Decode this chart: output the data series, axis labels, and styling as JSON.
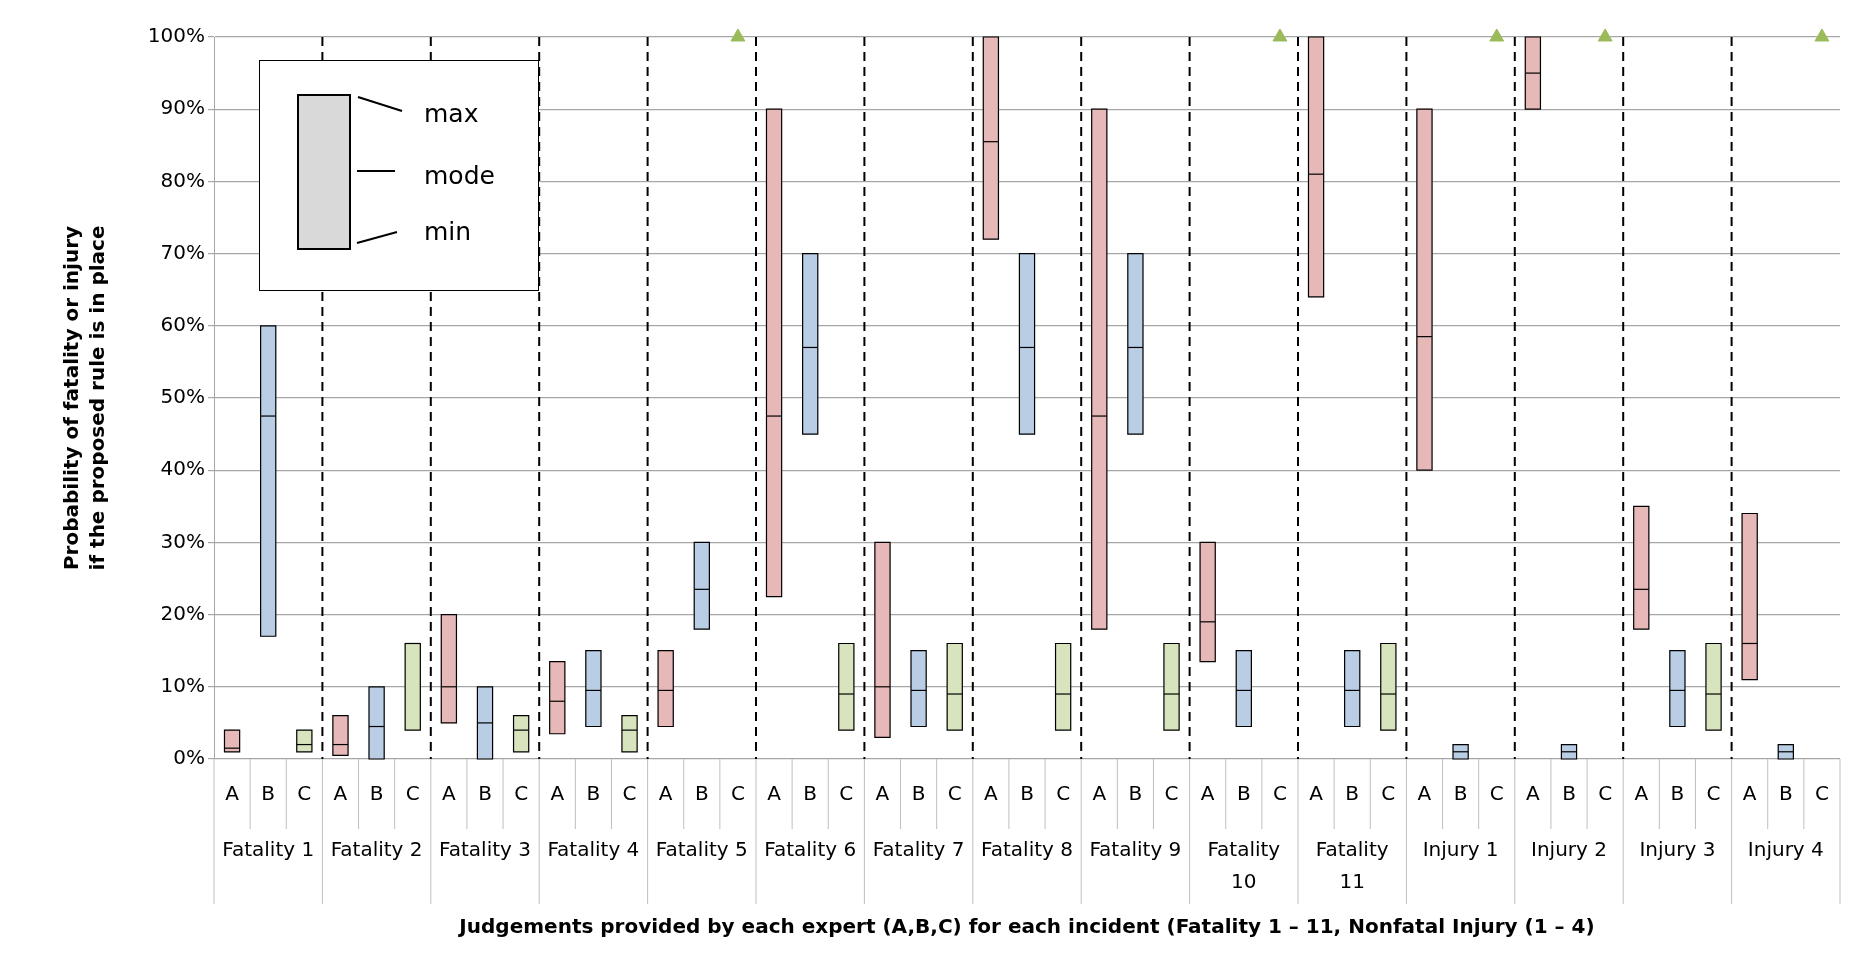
{
  "chart_data": {
    "type": "box",
    "xlabel": "Judgements provided by each expert (A,B,C) for each incident (Fatality 1 – 11, Nonfatal Injury (1 – 4)",
    "ylabel": "Probability of fatality or injury if the proposed rule is in place",
    "categories": [
      "Fatality 1",
      "Fatality 2",
      "Fatality 3",
      "Fatality 4",
      "Fatality 5",
      "Fatality 6",
      "Fatality 7",
      "Fatality 8",
      "Fatality 9",
      "Fatality 10",
      "Fatality 11",
      "Injury 1",
      "Injury 2",
      "Injury 3",
      "Injury 4"
    ],
    "series": [
      {
        "name": "A",
        "color": "#e6b9b8",
        "boxes": [
          {
            "low": 1,
            "q1": 1,
            "median": 1.5,
            "q3": 4,
            "high": 4
          },
          {
            "low": 0.5,
            "q1": 0.5,
            "median": 2,
            "q3": 6,
            "high": 6
          },
          {
            "low": 5,
            "q1": 5,
            "median": 10,
            "q3": 20,
            "high": 20
          },
          {
            "low": 3.5,
            "q1": 3.5,
            "median": 8,
            "q3": 13.5,
            "high": 13.5
          },
          {
            "low": 4.5,
            "q1": 4.5,
            "median": 9.5,
            "q3": 15,
            "high": 15
          },
          {
            "low": 22.5,
            "q1": 22.5,
            "median": 47.5,
            "q3": 90,
            "high": 90
          },
          {
            "low": 3,
            "q1": 3,
            "median": 10,
            "q3": 30,
            "high": 30
          },
          {
            "low": 72,
            "q1": 72,
            "median": 85.5,
            "q3": 100,
            "high": 100
          },
          {
            "low": 18,
            "q1": 18,
            "median": 47.5,
            "q3": 90,
            "high": 90
          },
          {
            "low": 13.5,
            "q1": 13.5,
            "median": 19,
            "q3": 30,
            "high": 30
          },
          {
            "low": 64,
            "q1": 64,
            "median": 81,
            "q3": 100,
            "high": 100
          },
          {
            "low": 40,
            "q1": 40,
            "median": 58.5,
            "q3": 90,
            "high": 90
          },
          {
            "low": 90,
            "q1": 90,
            "median": 95,
            "q3": 100,
            "high": 100
          },
          {
            "low": 18,
            "q1": 18,
            "median": 23.5,
            "q3": 35,
            "high": 35
          },
          {
            "low": 11,
            "q1": 11,
            "median": 16,
            "q3": 34,
            "high": 34
          }
        ]
      },
      {
        "name": "B",
        "color": "#b9cde5",
        "boxes": [
          {
            "low": 17,
            "q1": 17,
            "median": 47.5,
            "q3": 60,
            "high": 60
          },
          {
            "low": 0,
            "q1": 0,
            "median": 4.5,
            "q3": 10,
            "high": 10
          },
          {
            "low": 0,
            "q1": 0,
            "median": 5,
            "q3": 10,
            "high": 10
          },
          {
            "low": 4.5,
            "q1": 4.5,
            "median": 9.5,
            "q3": 15,
            "high": 15
          },
          {
            "low": 18,
            "q1": 18,
            "median": 23.5,
            "q3": 30,
            "high": 30
          },
          {
            "low": 45,
            "q1": 45,
            "median": 57,
            "q3": 70,
            "high": 70
          },
          {
            "low": 4.5,
            "q1": 4.5,
            "median": 9.5,
            "q3": 15,
            "high": 15
          },
          {
            "low": 45,
            "q1": 45,
            "median": 57,
            "q3": 70,
            "high": 70
          },
          {
            "low": 45,
            "q1": 45,
            "median": 57,
            "q3": 70,
            "high": 70
          },
          {
            "low": 4.5,
            "q1": 4.5,
            "median": 9.5,
            "q3": 15,
            "high": 15
          },
          {
            "low": 4.5,
            "q1": 4.5,
            "median": 9.5,
            "q3": 15,
            "high": 15
          },
          {
            "low": 0,
            "q1": 0,
            "median": 1,
            "q3": 2,
            "high": 2
          },
          {
            "low": 0,
            "q1": 0,
            "median": 1,
            "q3": 2,
            "high": 2
          },
          {
            "low": 4.5,
            "q1": 4.5,
            "median": 9.5,
            "q3": 15,
            "high": 15
          },
          {
            "low": 0,
            "q1": 0,
            "median": 1,
            "q3": 2,
            "high": 2
          }
        ]
      },
      {
        "name": "C",
        "color": "#d7e4bd",
        "boxes": [
          {
            "low": 1,
            "q1": 1,
            "median": 2,
            "q3": 4,
            "high": 4
          },
          {
            "low": 4,
            "q1": 4,
            "median": 16,
            "q3": 16,
            "high": 16
          },
          {
            "low": 1,
            "q1": 1,
            "median": 4,
            "q3": 6,
            "high": 6
          },
          {
            "low": 1,
            "q1": 1,
            "median": 4,
            "q3": 6,
            "high": 6
          },
          null,
          {
            "low": 4,
            "q1": 4,
            "median": 9,
            "q3": 16,
            "high": 16
          },
          {
            "low": 4,
            "q1": 4,
            "median": 9,
            "q3": 16,
            "high": 16
          },
          {
            "low": 4,
            "q1": 4,
            "median": 9,
            "q3": 16,
            "high": 16
          },
          {
            "low": 4,
            "q1": 4,
            "median": 9,
            "q3": 16,
            "high": 16
          },
          null,
          {
            "low": 4,
            "q1": 4,
            "median": 9,
            "q3": 16,
            "high": 16
          },
          null,
          null,
          {
            "low": 4,
            "q1": 4,
            "median": 9,
            "q3": 16,
            "high": 16
          },
          null
        ]
      },
      {
        "type": "scatter",
        "color": "#9bbb59",
        "values": [
          null,
          null,
          null,
          null,
          100,
          null,
          null,
          null,
          null,
          100,
          null,
          100,
          100,
          null,
          100
        ]
      }
    ],
    "marker": "triangle",
    "ylim": [
      0,
      100
    ],
    "yticks": [
      {
        "value": 0,
        "label": "0%"
      },
      {
        "value": 10,
        "label": "10%"
      },
      {
        "value": 20,
        "label": "20%"
      },
      {
        "value": 30,
        "label": "30%"
      },
      {
        "value": 40,
        "label": "40%"
      },
      {
        "value": 50,
        "label": "50%"
      },
      {
        "value": 60,
        "label": "60%"
      },
      {
        "value": 70,
        "label": "70%"
      },
      {
        "value": 80,
        "label": "80%"
      },
      {
        "value": 90,
        "label": "90%"
      },
      {
        "value": 100,
        "label": "100%"
      }
    ],
    "grid": "y",
    "annotations": [
      "max",
      "mode",
      "min"
    ]
  }
}
